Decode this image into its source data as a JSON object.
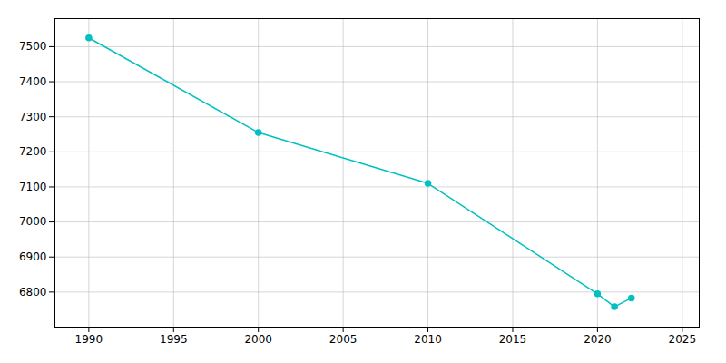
{
  "chart_data": {
    "type": "line",
    "x": [
      1990,
      2000,
      2010,
      2020,
      2021,
      2022
    ],
    "values": [
      7525,
      7255,
      7110,
      6795,
      6758,
      6783
    ],
    "color": "#00C0C0",
    "marker": "circle",
    "xlim": [
      1988,
      2026
    ],
    "ylim": [
      6700,
      7580
    ],
    "xticks": [
      1990,
      1995,
      2000,
      2005,
      2010,
      2015,
      2020,
      2025
    ],
    "yticks": [
      6800,
      6900,
      7000,
      7100,
      7200,
      7300,
      7400,
      7500
    ],
    "grid": true
  }
}
